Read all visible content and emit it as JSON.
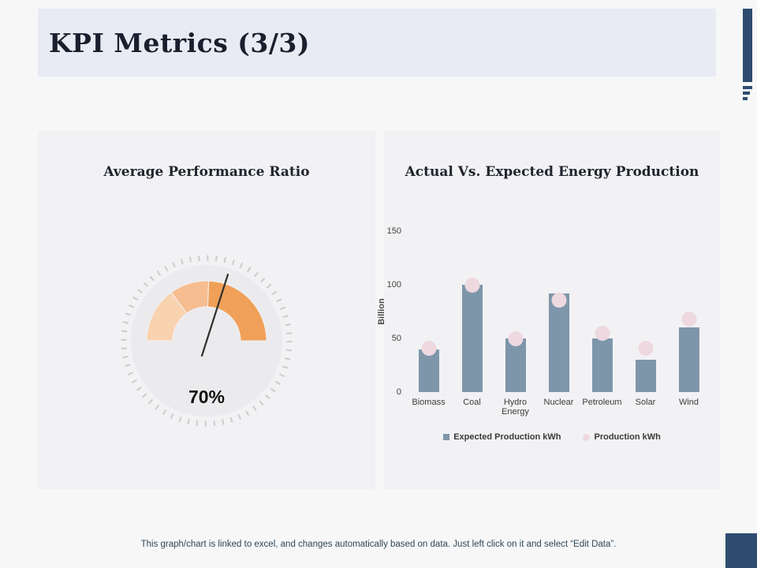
{
  "slide": {
    "title": "KPI Metrics (3/3)",
    "footer": "This graph/chart is linked to excel,  and changes automatically based on data. Just left click on it and select “Edit Data”."
  },
  "gauge": {
    "title": "Average Performance Ratio",
    "value_label": "70%"
  },
  "bar_chart": {
    "title": "Actual Vs. Expected Energy Production",
    "ylabel": "Billion"
  },
  "chart_data": [
    {
      "type": "gauge",
      "title": "Average Performance Ratio",
      "value": 70,
      "unit": "%",
      "range": [
        0,
        100
      ],
      "segment_count": 3
    },
    {
      "type": "bar",
      "title": "Actual Vs. Expected Energy Production",
      "categories": [
        "Biomass",
        "Coal",
        "Hydro Energy",
        "Nuclear",
        "Petroleum",
        "Solar",
        "Wind"
      ],
      "series": [
        {
          "name": "Expected Production kWh",
          "mark": "bar",
          "values": [
            40,
            100,
            50,
            92,
            50,
            30,
            60
          ]
        },
        {
          "name": "Production kWh",
          "mark": "point",
          "values": [
            41,
            100,
            50,
            86,
            55,
            41,
            68
          ]
        }
      ],
      "ylabel": "Billion",
      "yticks": [
        0,
        50,
        100,
        150
      ],
      "ylim": [
        0,
        150
      ],
      "grid": false,
      "legend_position": "bottom"
    }
  ],
  "colors": {
    "accent_navy": "#2e4d6e",
    "title_block_bg": "#e8ebf4",
    "panel_bg": "#f2f2f4",
    "bar": "#7e96aa",
    "dot": "#eed9e0",
    "gauge_segments": [
      "#f9d2b0",
      "#f6bd90",
      "#f0a058"
    ],
    "gauge_track": "#ebebee",
    "needle": "#2f2f2f"
  }
}
